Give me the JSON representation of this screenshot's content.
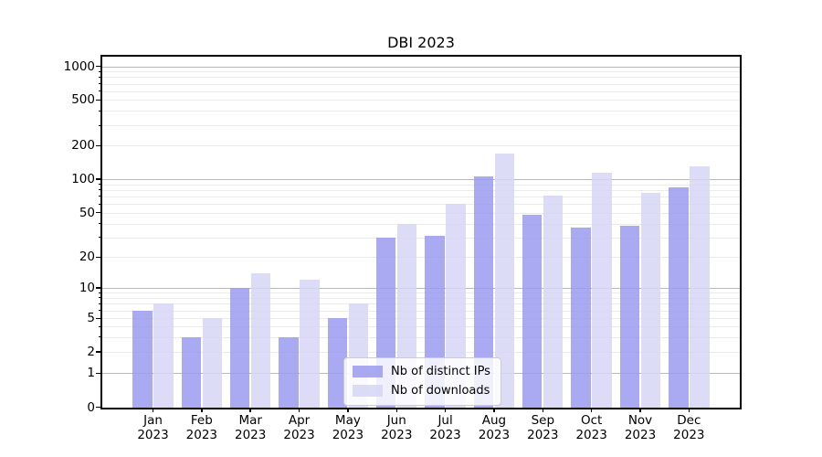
{
  "title": "DBI 2023",
  "legend": {
    "items": [
      {
        "label": "Nb of distinct IPs",
        "color": "#9b9bf0"
      },
      {
        "label": "Nb of downloads",
        "color": "#d6d6f5"
      }
    ]
  },
  "y_axis": {
    "tick_labels": [
      "1000",
      "500",
      "200",
      "100",
      "50",
      "20",
      "10",
      "5",
      "2",
      "1",
      "0"
    ]
  },
  "x_axis": {
    "months": [
      "Jan",
      "Feb",
      "Mar",
      "Apr",
      "May",
      "Jun",
      "Jul",
      "Aug",
      "Sep",
      "Oct",
      "Nov",
      "Dec"
    ],
    "year_line": "2023"
  },
  "chart_data": {
    "type": "bar",
    "title": "DBI 2023",
    "categories": [
      "Jan 2023",
      "Feb 2023",
      "Mar 2023",
      "Apr 2023",
      "May 2023",
      "Jun 2023",
      "Jul 2023",
      "Aug 2023",
      "Sep 2023",
      "Oct 2023",
      "Nov 2023",
      "Dec 2023"
    ],
    "series": [
      {
        "name": "Nb of distinct IPs",
        "color": "#9b9bf0",
        "values": [
          6,
          3,
          10,
          3,
          5,
          30,
          31,
          105,
          48,
          37,
          38,
          85
        ]
      },
      {
        "name": "Nb of downloads",
        "color": "#d6d6f5",
        "values": [
          7,
          5,
          14,
          12,
          7,
          40,
          60,
          170,
          71,
          115,
          75,
          130
        ]
      }
    ],
    "yscale": "symlog",
    "y_ticks": [
      0,
      1,
      2,
      5,
      10,
      20,
      50,
      100,
      200,
      500,
      1000
    ],
    "ylim": [
      0,
      1200
    ],
    "grid": "both",
    "legend_position": "lower center"
  }
}
